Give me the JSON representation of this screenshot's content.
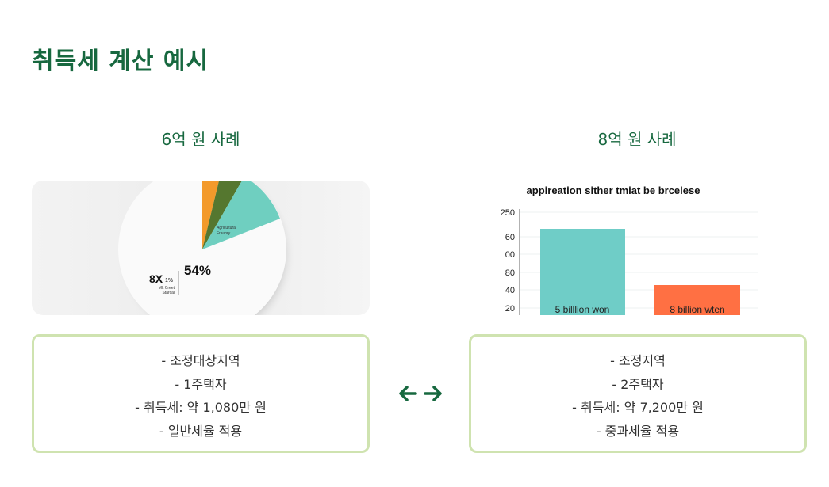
{
  "header": {
    "title": "취득세 계산 예시"
  },
  "cases": [
    {
      "heading": "6억 원 사례",
      "image": {
        "slice_label": [
          "Agricultural",
          "Fraunry"
        ],
        "percent": "54%",
        "big": "8X",
        "small": "1%",
        "legend": [
          "Mlt Creet",
          "Starcal"
        ]
      },
      "details": [
        "- 조정대상지역",
        "- 1주택자",
        "- 취득세: 약 1,080만 원",
        "- 일반세율 적용"
      ]
    },
    {
      "heading": "8억 원 사례",
      "image": {
        "title": "appireation sither tmiat be brcelese",
        "ticks": [
          "250",
          "60",
          "00",
          "80",
          "40",
          "20"
        ],
        "bar_labels": [
          "5 billlion won",
          "8 billion wten"
        ]
      },
      "details": [
        "- 조정지역",
        "- 2주택자",
        "- 취득세: 약 7,200만 원",
        "- 중과세율 적용"
      ]
    }
  ]
}
